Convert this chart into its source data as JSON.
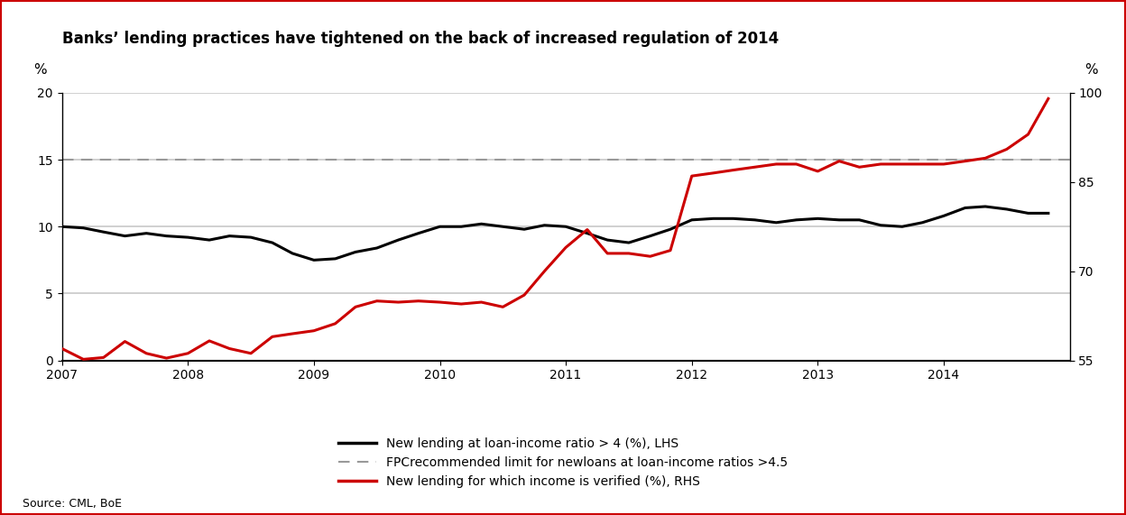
{
  "title": "Banks’ lending practices have tightened on the back of increased regulation of 2014",
  "source_text": "Source: CML, BoE",
  "lhs_ylabel": "%",
  "rhs_ylabel": "%",
  "lhs_ylim": [
    0,
    20
  ],
  "rhs_ylim": [
    55,
    100
  ],
  "lhs_yticks": [
    0,
    5,
    10,
    15,
    20
  ],
  "rhs_yticks": [
    55,
    70,
    85,
    100
  ],
  "fpc_line_value": 15,
  "legend_labels": [
    "New lending at loan-income ratio > 4 (%), LHS",
    "FPCrecommended limit for newloans at loan-income ratios >4.5",
    "New lending for which income is verified (%), RHS"
  ],
  "black_line_x": [
    2007.0,
    2007.17,
    2007.33,
    2007.5,
    2007.67,
    2007.83,
    2008.0,
    2008.17,
    2008.33,
    2008.5,
    2008.67,
    2008.83,
    2009.0,
    2009.17,
    2009.33,
    2009.5,
    2009.67,
    2009.83,
    2010.0,
    2010.17,
    2010.33,
    2010.5,
    2010.67,
    2010.83,
    2011.0,
    2011.17,
    2011.33,
    2011.5,
    2011.67,
    2011.83,
    2012.0,
    2012.17,
    2012.33,
    2012.5,
    2012.67,
    2012.83,
    2013.0,
    2013.17,
    2013.33,
    2013.5,
    2013.67,
    2013.83,
    2014.0,
    2014.17,
    2014.33,
    2014.5,
    2014.67,
    2014.83
  ],
  "black_line_y": [
    10.0,
    9.9,
    9.6,
    9.3,
    9.5,
    9.3,
    9.2,
    9.0,
    9.3,
    9.2,
    8.8,
    8.0,
    7.5,
    7.6,
    8.1,
    8.4,
    9.0,
    9.5,
    10.0,
    10.0,
    10.2,
    10.0,
    9.8,
    10.1,
    10.0,
    9.5,
    9.0,
    8.8,
    9.3,
    9.8,
    10.5,
    10.6,
    10.6,
    10.5,
    10.3,
    10.5,
    10.6,
    10.5,
    10.5,
    10.1,
    10.0,
    10.3,
    10.8,
    11.4,
    11.5,
    11.3,
    11.0,
    11.0
  ],
  "red_line_x": [
    2007.0,
    2007.17,
    2007.33,
    2007.5,
    2007.67,
    2007.83,
    2008.0,
    2008.17,
    2008.33,
    2008.5,
    2008.67,
    2008.83,
    2009.0,
    2009.17,
    2009.33,
    2009.5,
    2009.67,
    2009.83,
    2010.0,
    2010.17,
    2010.33,
    2010.5,
    2010.67,
    2010.83,
    2011.0,
    2011.17,
    2011.33,
    2011.5,
    2011.67,
    2011.83,
    2012.0,
    2012.17,
    2012.33,
    2012.5,
    2012.67,
    2012.83,
    2013.0,
    2013.17,
    2013.33,
    2013.5,
    2013.67,
    2013.83,
    2014.0,
    2014.17,
    2014.33,
    2014.5,
    2014.67,
    2014.83
  ],
  "red_line_y_rhs": [
    57.0,
    55.2,
    55.5,
    58.2,
    56.2,
    55.4,
    56.2,
    58.3,
    57.0,
    56.2,
    59.0,
    59.5,
    60.0,
    61.2,
    64.0,
    65.0,
    64.8,
    65.0,
    64.8,
    64.5,
    64.8,
    64.0,
    66.0,
    70.0,
    74.0,
    77.0,
    73.0,
    73.0,
    72.5,
    73.5,
    86.0,
    86.5,
    87.0,
    87.5,
    88.0,
    88.0,
    86.8,
    88.5,
    87.5,
    88.0,
    88.0,
    88.0,
    88.0,
    88.5,
    89.0,
    90.5,
    93.0,
    99.0
  ],
  "background_color": "#ffffff",
  "border_color": "#cc0000",
  "grid_color": "#c8c8c8",
  "black_line_color": "#000000",
  "red_line_color": "#cc0000",
  "fpc_line_color": "#999999",
  "xticks": [
    2007,
    2008,
    2009,
    2010,
    2011,
    2012,
    2013,
    2014
  ],
  "xlim": [
    2007.0,
    2015.0
  ]
}
